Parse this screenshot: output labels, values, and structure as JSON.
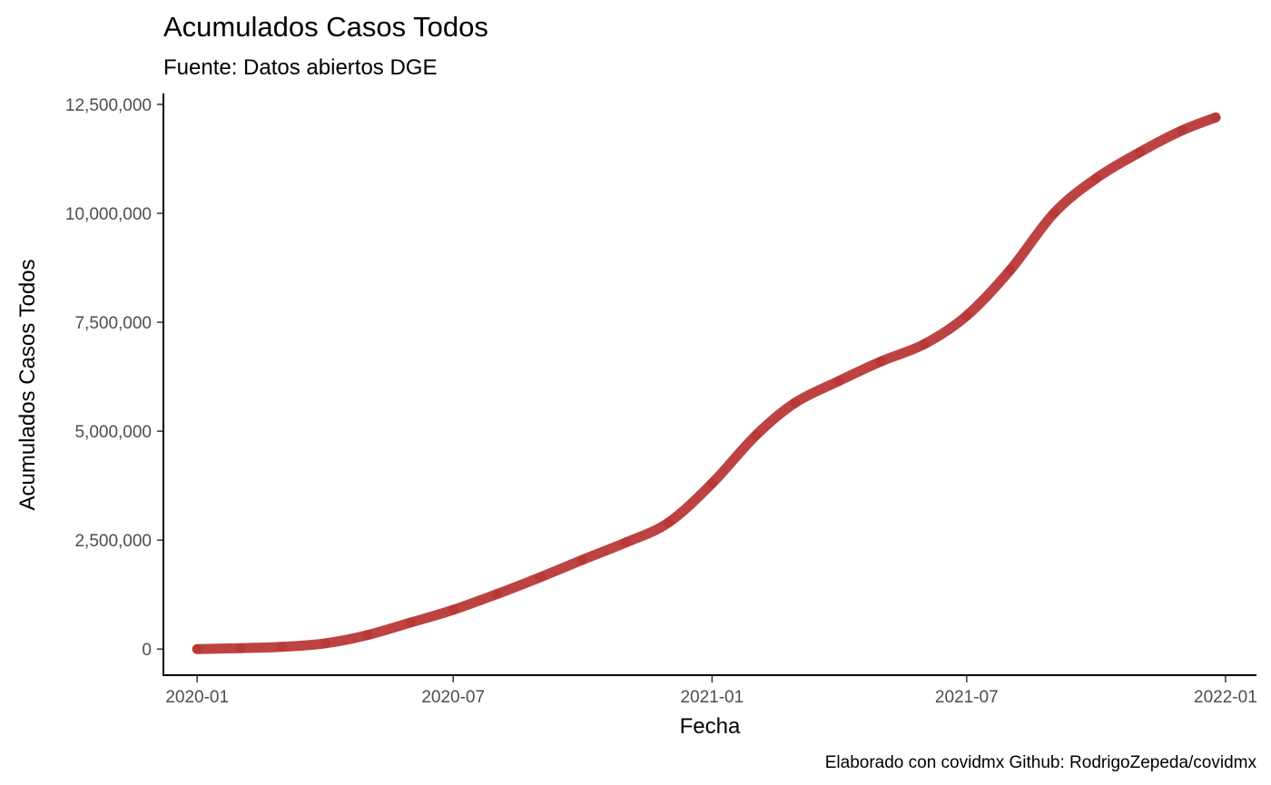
{
  "chart_data": {
    "type": "line",
    "title": "Acumulados Casos Todos",
    "subtitle": "Fuente: Datos abiertos DGE",
    "xlabel": "Fecha",
    "ylabel": "Acumulados Casos Todos",
    "caption": "Elaborado con covidmx Github: RodrigoZepeda/covidmx",
    "line_color": "#b22222",
    "grid": false,
    "x_ticks": [
      "2020-01",
      "2020-07",
      "2021-01",
      "2021-07",
      "2022-01"
    ],
    "y_ticks": [
      "0",
      "2,500,000",
      "5,000,000",
      "7,500,000",
      "10,000,000",
      "12,500,000"
    ],
    "xlim": [
      "2019-12-08",
      "2022-01-23"
    ],
    "ylim": [
      -600000,
      12750000
    ],
    "series": [
      {
        "x": [
          "2020-01-01",
          "2020-02-01",
          "2020-03-01",
          "2020-04-01",
          "2020-05-01",
          "2020-06-01",
          "2020-07-01",
          "2020-08-01",
          "2020-09-01",
          "2020-10-01",
          "2020-11-01",
          "2020-12-01",
          "2021-01-01",
          "2021-02-01",
          "2021-03-01",
          "2021-04-01",
          "2021-05-01",
          "2021-06-01",
          "2021-07-01",
          "2021-08-01",
          "2021-09-01",
          "2021-10-01",
          "2021-11-01",
          "2021-12-01",
          "2021-12-25"
        ],
        "y": [
          0,
          20000,
          50000,
          130000,
          320000,
          610000,
          900000,
          1260000,
          1650000,
          2050000,
          2450000,
          2900000,
          3800000,
          4900000,
          5650000,
          6150000,
          6600000,
          7000000,
          7650000,
          8700000,
          10000000,
          10800000,
          11400000,
          11900000,
          12200000
        ]
      }
    ]
  }
}
